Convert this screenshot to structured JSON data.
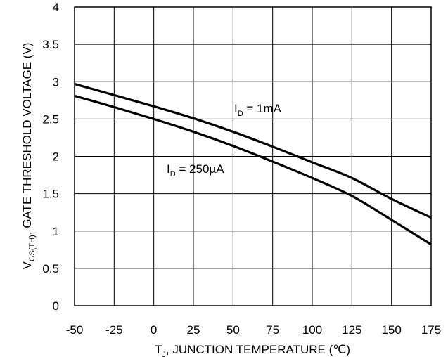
{
  "chart_data": {
    "type": "line",
    "title": "",
    "xlabel": {
      "main": "T",
      "sub": "J",
      "rest": ", JUNCTION TEMPERATURE (℃)"
    },
    "ylabel": {
      "main": "V",
      "sub": "GS(TH)",
      "rest": ",  GATE THRESHOLD VOLTAGE (V)"
    },
    "xlim": [
      -50,
      175
    ],
    "ylim": [
      0,
      4
    ],
    "x_ticks": [
      "-50",
      "-25",
      "0",
      "25",
      "50",
      "75",
      "100",
      "125",
      "150",
      "175"
    ],
    "y_ticks": [
      "0",
      "0.5",
      "1",
      "1.5",
      "2",
      "2.5",
      "3",
      "3.5",
      "4"
    ],
    "grid": true,
    "series": [
      {
        "name": "I_D = 1mA",
        "label": {
          "main": "I",
          "sub": "D",
          "rest": " = 1mA"
        },
        "x": [
          -50,
          -25,
          0,
          25,
          50,
          75,
          100,
          125,
          150,
          175
        ],
        "y": [
          2.97,
          2.82,
          2.67,
          2.51,
          2.33,
          2.13,
          1.92,
          1.71,
          1.43,
          1.18
        ]
      },
      {
        "name": "I_D = 250µA",
        "label": {
          "main": "I",
          "sub": "D",
          "rest": " = 250µA"
        },
        "x": [
          -50,
          -25,
          0,
          25,
          50,
          75,
          100,
          125,
          150,
          175
        ],
        "y": [
          2.81,
          2.66,
          2.5,
          2.33,
          2.14,
          1.93,
          1.71,
          1.47,
          1.15,
          0.82
        ]
      }
    ]
  }
}
